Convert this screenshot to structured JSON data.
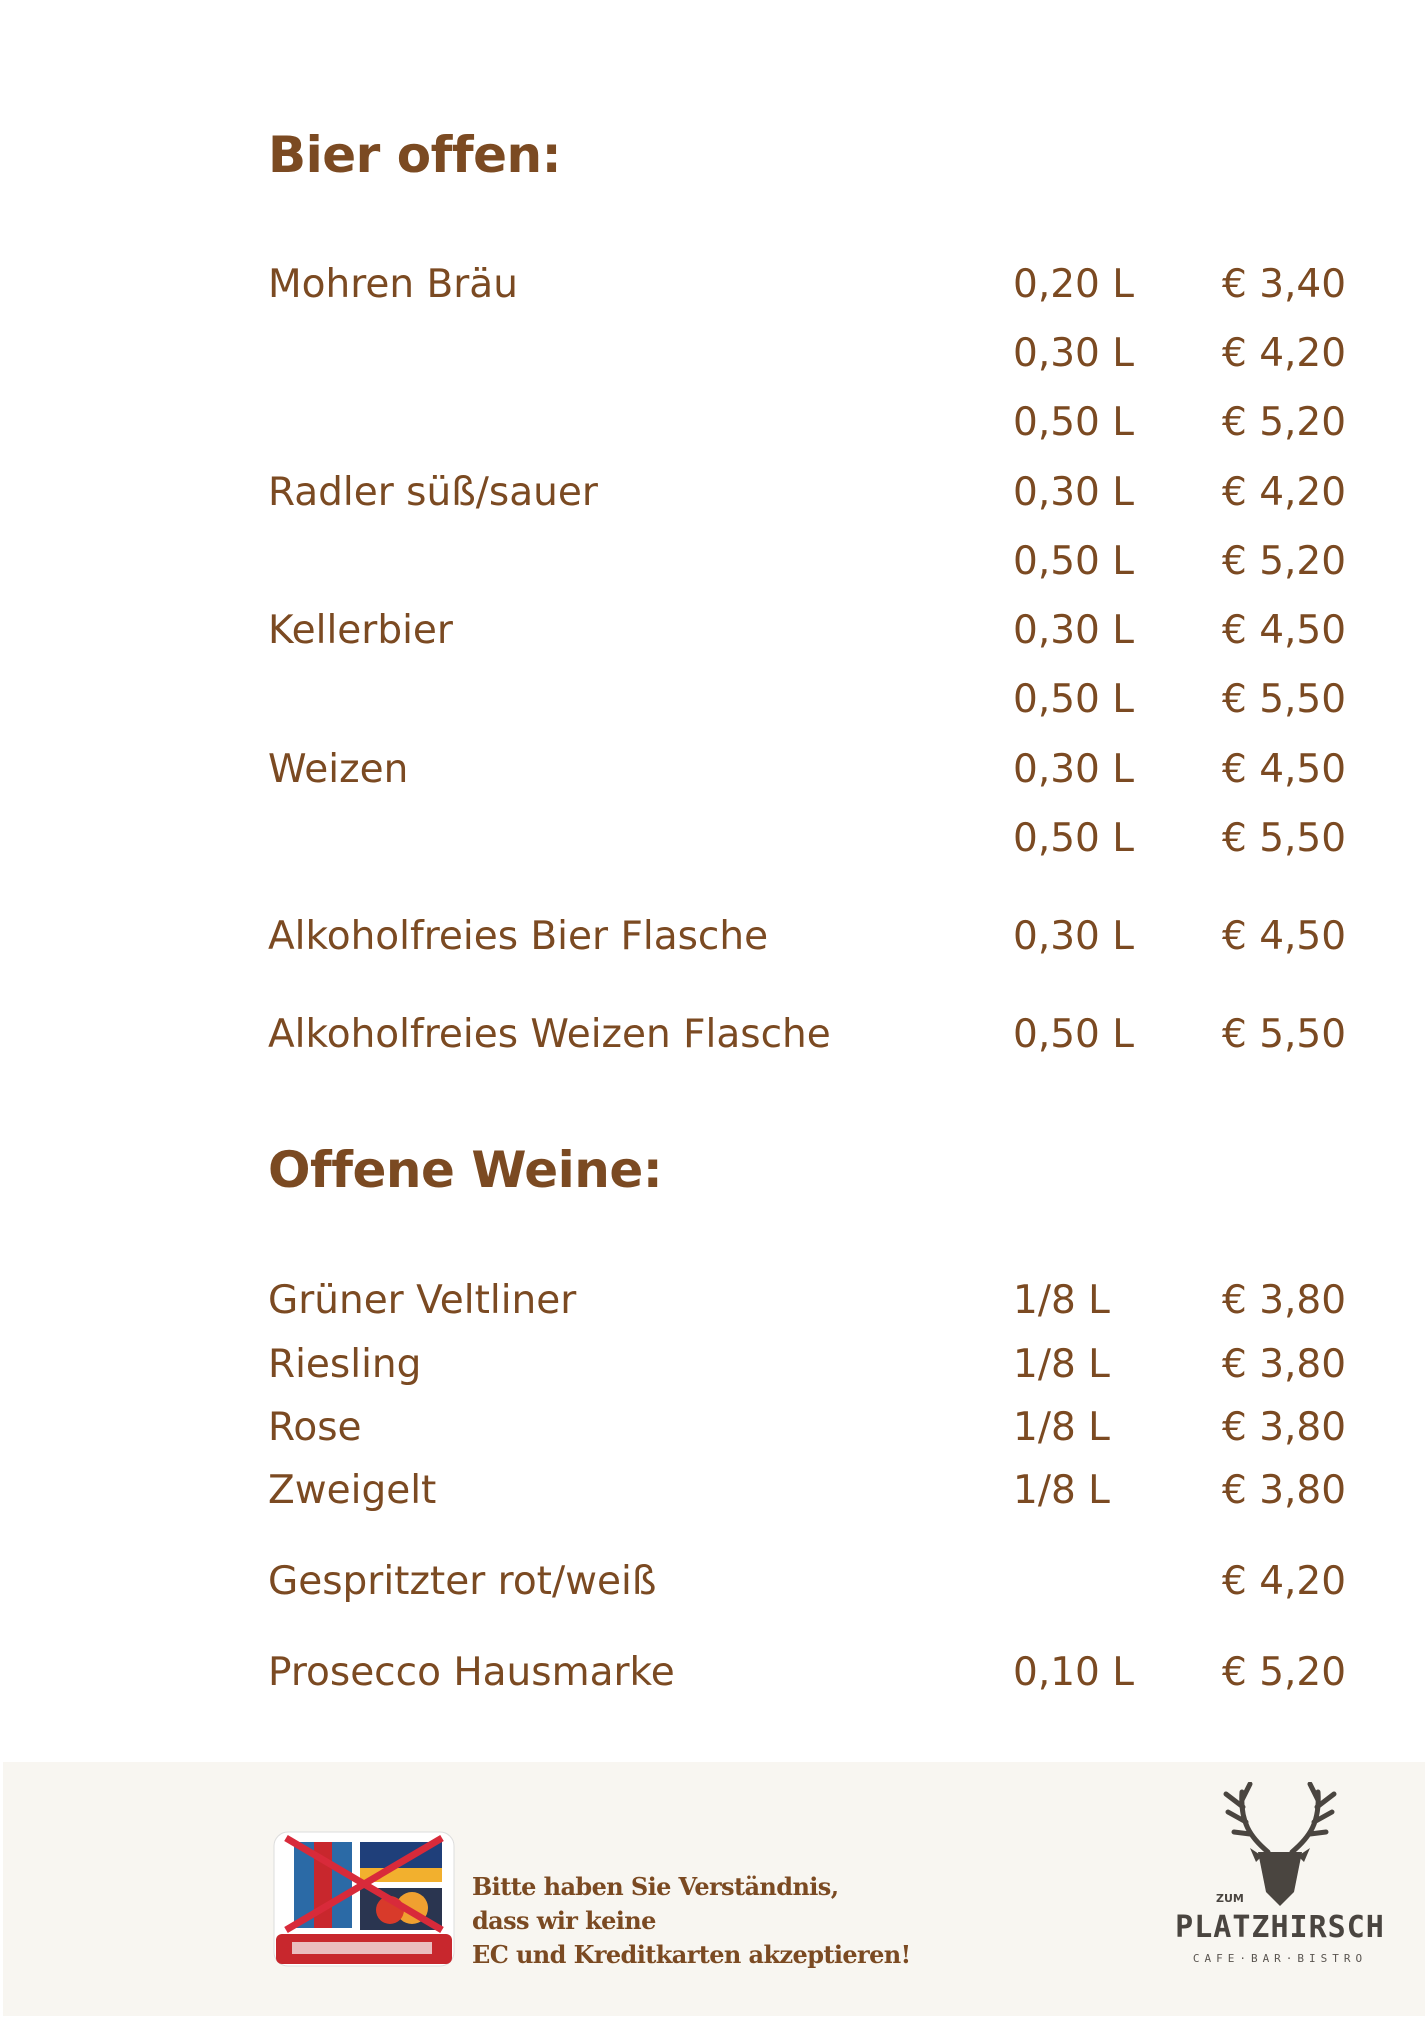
{
  "colors": {
    "text": "#7b4a22",
    "footer_bg": "#f8f6f1",
    "logo": "#4a4540",
    "card_red": "#c8272d"
  },
  "beer": {
    "heading": "Bier offen:",
    "rows": [
      {
        "name": "Mohren Bräu",
        "volume": "0,20 L",
        "price": "€ 3,40"
      },
      {
        "name": "",
        "volume": "0,30 L",
        "price": "€ 4,20"
      },
      {
        "name": "",
        "volume": "0,50 L",
        "price": "€ 5,20"
      },
      {
        "name": "Radler süß/sauer",
        "volume": "0,30 L",
        "price": "€ 4,20"
      },
      {
        "name": "",
        "volume": "0,50 L",
        "price": "€ 5,20"
      },
      {
        "name": "Kellerbier",
        "volume": "0,30 L",
        "price": "€ 4,50"
      },
      {
        "name": "",
        "volume": "0,50 L",
        "price": "€ 5,50"
      },
      {
        "name": "Weizen",
        "volume": "0,30 L",
        "price": "€ 4,50"
      },
      {
        "name": "",
        "volume": "0,50 L",
        "price": "€ 5,50"
      },
      {
        "name": "Alkoholfreies Bier Flasche",
        "volume": "0,30 L",
        "price": "€ 4,50"
      },
      {
        "name": "Alkoholfreies Weizen Flasche",
        "volume": "0,50 L",
        "price": "€ 5,50"
      }
    ]
  },
  "wine": {
    "heading": "Offene Weine:",
    "rows": [
      {
        "name": "Grüner Veltliner",
        "volume": "1/8 L",
        "price": "€ 3,80"
      },
      {
        "name": "Riesling",
        "volume": "1/8 L",
        "price": "€ 3,80"
      },
      {
        "name": "Rose",
        "volume": "1/8 L",
        "price": "€ 3,80"
      },
      {
        "name": "Zweigelt",
        "volume": "1/8 L",
        "price": "€ 3,80"
      },
      {
        "name": "Gespritzter rot/weiß",
        "volume": "",
        "price": "€ 4,20"
      },
      {
        "name": "Prosecco Hausmarke",
        "volume": "0,10 L",
        "price": "€ 5,20"
      }
    ]
  },
  "footer": {
    "note_lines": [
      "Bitte haben Sie Verständnis,",
      "dass wir keine",
      "EC und Kreditkarten akzeptieren!"
    ],
    "cards_icon": "no-card-payment-icon",
    "logo": {
      "small": "ZUM",
      "name": "PLATZHIRSCH",
      "sub": "CAFE·BAR·BISTRO",
      "icon": "stag-head-icon"
    }
  }
}
